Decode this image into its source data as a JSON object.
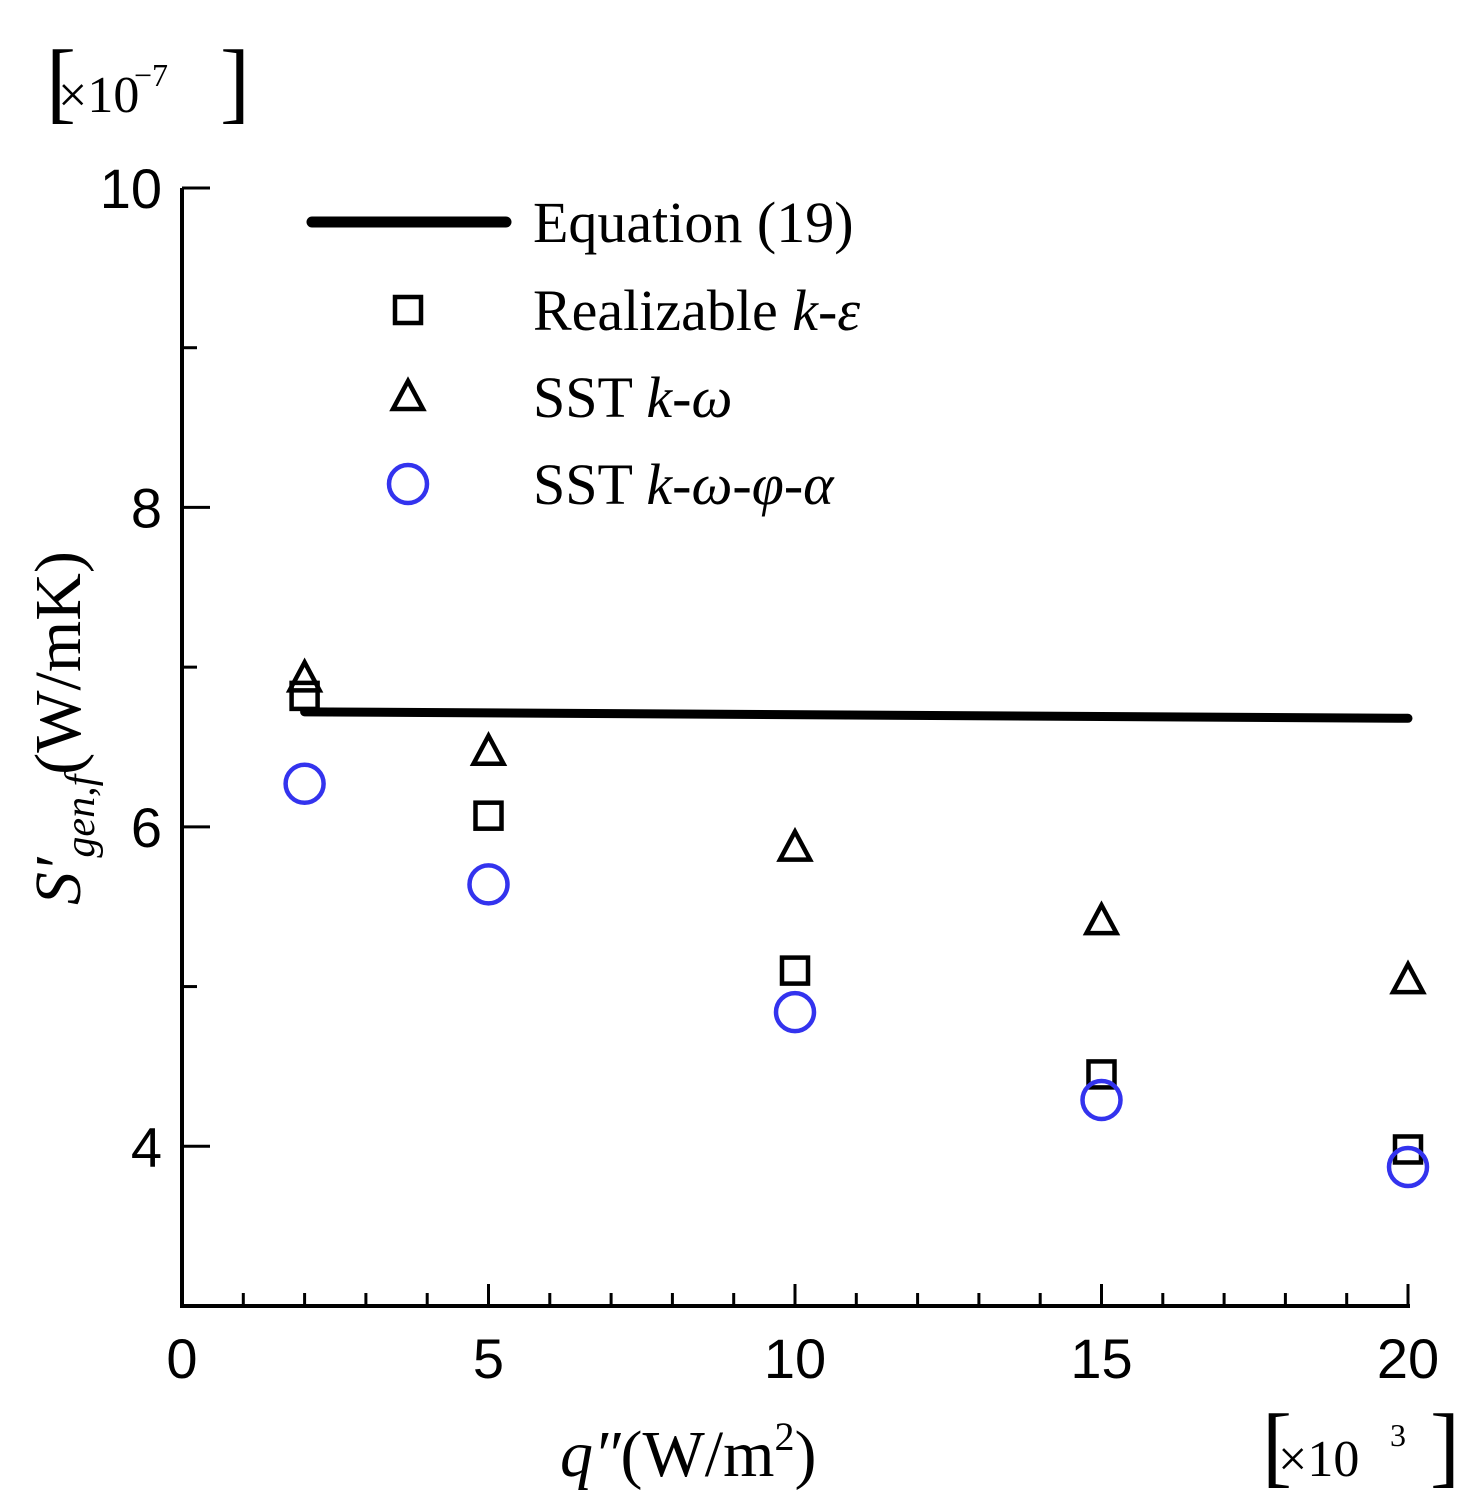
{
  "chart_data": {
    "type": "scatter",
    "x_multiplier": {
      "prefix": "×10",
      "exponent": "3"
    },
    "y_multiplier": {
      "prefix": "×10",
      "exponent": "−7"
    },
    "xlabel": {
      "symbol": "q″",
      "unit": "(W/m",
      "unit_exp": "2",
      "unit_close": ")"
    },
    "ylabel": {
      "symbol": "S′",
      "sub": "gen,f",
      "unit": "(W/mK)"
    },
    "xlim": [
      0,
      20
    ],
    "ylim": [
      3,
      10
    ],
    "x_ticks": [
      0,
      5,
      10,
      15,
      20
    ],
    "x_tick_labels": [
      "0",
      "5",
      "10",
      "15",
      "20"
    ],
    "x_minor_step": 1,
    "y_ticks": [
      4,
      6,
      8,
      10
    ],
    "y_tick_labels": [
      "4",
      "6",
      "8",
      "10"
    ],
    "y_minor_ticks": [
      5,
      7,
      9
    ],
    "grid": false,
    "legend_position": "top-left",
    "series": [
      {
        "name": "Equation (19)",
        "label_plain": "Equation (19)",
        "kind": "line",
        "color": "#000000",
        "x": [
          2,
          20
        ],
        "y": [
          6.72,
          6.68
        ]
      },
      {
        "name": "Realizable k-ε",
        "label_plain": "Realizable ",
        "label_italic": "k-ε",
        "kind": "square",
        "color": "#000000",
        "x": [
          2,
          5,
          10,
          15,
          20
        ],
        "y": [
          6.82,
          6.07,
          5.1,
          4.45,
          3.98
        ]
      },
      {
        "name": "SST k-ω",
        "label_plain": "SST ",
        "label_italic": "k-ω",
        "kind": "triangle",
        "color": "#000000",
        "x": [
          2,
          5,
          10,
          15,
          20
        ],
        "y": [
          6.93,
          6.47,
          5.87,
          5.41,
          5.04
        ]
      },
      {
        "name": "SST k-ω-φ-α",
        "label_plain": "SST ",
        "label_italic": "k-ω-φ-α",
        "kind": "circle",
        "color": "#3333ee",
        "x": [
          2,
          5,
          10,
          15,
          20
        ],
        "y": [
          6.27,
          5.64,
          4.84,
          4.29,
          3.87
        ]
      }
    ]
  }
}
